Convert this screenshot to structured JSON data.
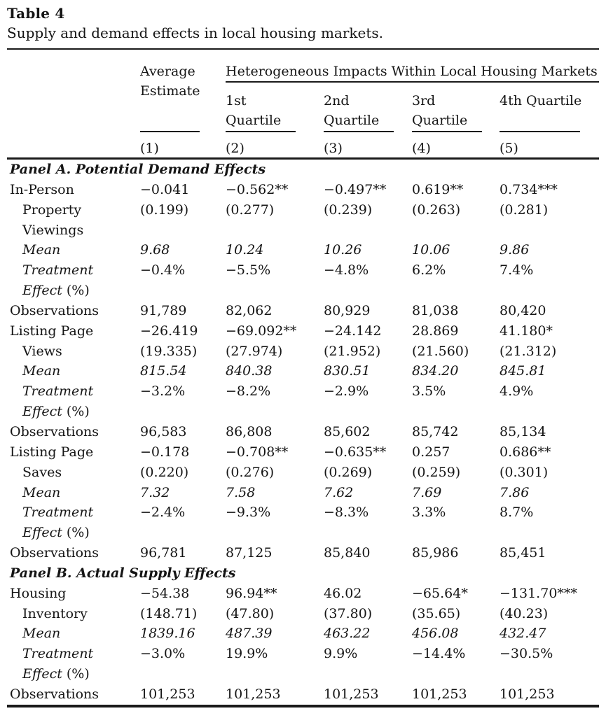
{
  "title": "Table 4",
  "caption": "Supply and demand effects in local housing markets.",
  "colors": {
    "background": "#ffffff",
    "text": "#151515",
    "rule": "#1a1a1a"
  },
  "header": {
    "average": [
      "Average",
      "Estimate"
    ],
    "hetero": "Heterogeneous Impacts Within Local Housing Markets",
    "quartiles": [
      [
        "1st",
        "Quartile"
      ],
      [
        "2nd",
        "Quartile"
      ],
      [
        "3rd",
        "Quartile"
      ],
      [
        "4th Quartile",
        ""
      ]
    ],
    "col_numbers": [
      "(1)",
      "(2)",
      "(3)",
      "(4)",
      "(5)"
    ]
  },
  "rows": [
    {
      "type": "panel",
      "label": "Panel A. Potential Demand Effects"
    },
    {
      "type": "data",
      "label": "In-Person",
      "values": [
        "−0.041",
        "−0.562**",
        "−0.497**",
        "0.619**",
        "0.734***"
      ]
    },
    {
      "type": "data",
      "label": "Property",
      "indent": true,
      "values": [
        "(0.199)",
        "(0.277)",
        "(0.239)",
        "(0.263)",
        "(0.281)"
      ]
    },
    {
      "type": "data",
      "label": "Viewings",
      "indent": true,
      "values": []
    },
    {
      "type": "data",
      "label": "Mean",
      "indent": true,
      "italic_label": true,
      "italic_values": true,
      "values": [
        "9.68",
        "10.24",
        "10.26",
        "10.06",
        "9.86"
      ]
    },
    {
      "type": "data",
      "label": "Treatment",
      "indent": true,
      "italic_label": true,
      "values": [
        "−0.4%",
        "−5.5%",
        "−4.8%",
        "6.2%",
        "7.4%"
      ]
    },
    {
      "type": "data",
      "label": "Effect",
      "suffix": " (%)",
      "indent": true,
      "italic_label": true,
      "values": []
    },
    {
      "type": "data",
      "label": "Observations",
      "values": [
        "91,789",
        "82,062",
        "80,929",
        "81,038",
        "80,420"
      ]
    },
    {
      "type": "data",
      "label": "Listing Page",
      "values": [
        "−26.419",
        "−69.092**",
        "−24.142",
        "28.869",
        "41.180*"
      ]
    },
    {
      "type": "data",
      "label": "Views",
      "indent": true,
      "values": [
        "(19.335)",
        "(27.974)",
        "(21.952)",
        "(21.560)",
        "(21.312)"
      ]
    },
    {
      "type": "data",
      "label": "Mean",
      "indent": true,
      "italic_label": true,
      "italic_values": true,
      "values": [
        "815.54",
        "840.38",
        "830.51",
        "834.20",
        "845.81"
      ]
    },
    {
      "type": "data",
      "label": "Treatment",
      "indent": true,
      "italic_label": true,
      "values": [
        "−3.2%",
        "−8.2%",
        "−2.9%",
        "3.5%",
        "4.9%"
      ]
    },
    {
      "type": "data",
      "label": "Effect",
      "suffix": " (%)",
      "indent": true,
      "italic_label": true,
      "values": []
    },
    {
      "type": "data",
      "label": "Observations",
      "values": [
        "96,583",
        "86,808",
        "85,602",
        "85,742",
        "85,134"
      ]
    },
    {
      "type": "data",
      "label": "Listing Page",
      "values": [
        "−0.178",
        "−0.708**",
        "−0.635**",
        "0.257",
        "0.686**"
      ]
    },
    {
      "type": "data",
      "label": "Saves",
      "indent": true,
      "values": [
        "(0.220)",
        "(0.276)",
        "(0.269)",
        "(0.259)",
        "(0.301)"
      ]
    },
    {
      "type": "data",
      "label": "Mean",
      "indent": true,
      "italic_label": true,
      "italic_values": true,
      "values": [
        "7.32",
        "7.58",
        "7.62",
        "7.69",
        "7.86"
      ]
    },
    {
      "type": "data",
      "label": "Treatment",
      "indent": true,
      "italic_label": true,
      "values": [
        "−2.4%",
        "−9.3%",
        "−8.3%",
        "3.3%",
        "8.7%"
      ]
    },
    {
      "type": "data",
      "label": "Effect",
      "suffix": " (%)",
      "indent": true,
      "italic_label": true,
      "values": []
    },
    {
      "type": "data",
      "label": "Observations",
      "values": [
        "96,781",
        "87,125",
        "85,840",
        "85,986",
        "85,451"
      ]
    },
    {
      "type": "panel",
      "label": "Panel B. Actual Supply Effects"
    },
    {
      "type": "data",
      "label": "Housing",
      "values": [
        "−54.38",
        "96.94**",
        "46.02",
        "−65.64*",
        "−131.70***"
      ]
    },
    {
      "type": "data",
      "label": "Inventory",
      "indent": true,
      "values": [
        "(148.71)",
        "(47.80)",
        "(37.80)",
        "(35.65)",
        "(40.23)"
      ]
    },
    {
      "type": "data",
      "label": "Mean",
      "indent": true,
      "italic_label": true,
      "italic_values": true,
      "values": [
        "1839.16",
        "487.39",
        "463.22",
        "456.08",
        "432.47"
      ]
    },
    {
      "type": "data",
      "label": "Treatment",
      "indent": true,
      "italic_label": true,
      "values": [
        "−3.0%",
        "19.9%",
        "9.9%",
        "−14.4%",
        "−30.5%"
      ]
    },
    {
      "type": "data",
      "label": "Effect",
      "suffix": " (%)",
      "indent": true,
      "italic_label": true,
      "values": []
    },
    {
      "type": "data",
      "label": "Observations",
      "values": [
        "101,253",
        "101,253",
        "101,253",
        "101,253",
        "101,253"
      ]
    }
  ]
}
